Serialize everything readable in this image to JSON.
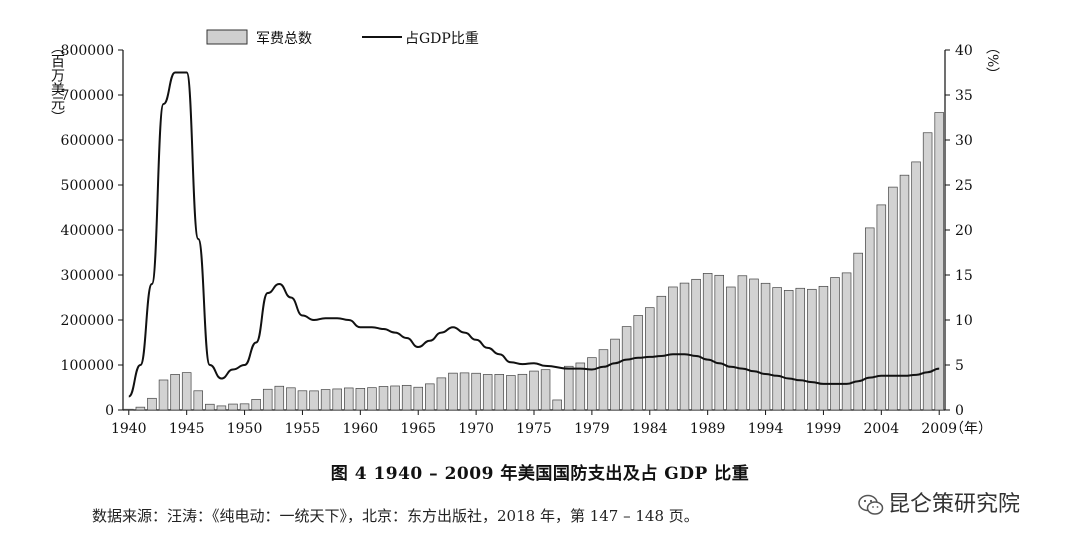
{
  "chart_data": {
    "type": "bar+line",
    "legend": {
      "position": "top-center",
      "bar_label": "军费总数",
      "line_label": "占GDP比重"
    },
    "y_left": {
      "unit": "（百万美元）",
      "ylim": [
        0,
        800000
      ],
      "ticks": [
        "0",
        "100000",
        "200000",
        "300000",
        "400000",
        "500000",
        "600000",
        "700000",
        "800000"
      ]
    },
    "y_right": {
      "unit": "（%）",
      "ylim": [
        0,
        40
      ],
      "ticks": [
        "0",
        "5",
        "10",
        "15",
        "20",
        "25",
        "30",
        "35",
        "40"
      ]
    },
    "x_ticks": [
      "1940",
      "1945",
      "1950",
      "1955",
      "1960",
      "1965",
      "1970",
      "1975",
      "1979",
      "1984",
      "1989",
      "1994",
      "1999",
      "2004",
      "2009"
    ],
    "x_unit": "（年）",
    "series": [
      {
        "name": "军费总数",
        "type": "bar",
        "x": [
          "1940",
          "1941",
          "1942",
          "1943",
          "1944",
          "1945",
          "1946",
          "1947",
          "1948",
          "1949",
          "1950",
          "1951",
          "1952",
          "1953",
          "1954",
          "1955",
          "1956",
          "1957",
          "1958",
          "1959",
          "1960",
          "1961",
          "1962",
          "1963",
          "1964",
          "1965",
          "1966",
          "1967",
          "1968",
          "1969",
          "1970",
          "1971",
          "1972",
          "1973",
          "1974",
          "1975",
          "1976",
          "1976TQ",
          "1977",
          "1978",
          "1979",
          "1980",
          "1981",
          "1982",
          "1983",
          "1984",
          "1985",
          "1986",
          "1987",
          "1988",
          "1989",
          "1990",
          "1991",
          "1992",
          "1993",
          "1994",
          "1995",
          "1996",
          "1997",
          "1998",
          "1999",
          "2000",
          "2001",
          "2002",
          "2003",
          "2004",
          "2005",
          "2006",
          "2007",
          "2008",
          "2009"
        ],
        "values": [
          1700,
          6300,
          26000,
          66700,
          79100,
          83000,
          42700,
          12800,
          9100,
          13200,
          13700,
          23600,
          46100,
          52800,
          49300,
          42700,
          42500,
          45400,
          46800,
          49000,
          48100,
          49600,
          52300,
          53400,
          54800,
          50600,
          58100,
          71400,
          81900,
          82500,
          81700,
          78900,
          79200,
          76700,
          79300,
          86500,
          89600,
          22300,
          97200,
          104500,
          116300,
          134000,
          157500,
          185300,
          209900,
          227400,
          252700,
          273400,
          282000,
          290400,
          303600,
          299300,
          273300,
          298300,
          291100,
          281600,
          272100,
          265800,
          270500,
          268200,
          274800,
          294400,
          304700,
          348500,
          404700,
          455800,
          495300,
          521800,
          551300,
          616100,
          661000
        ]
      },
      {
        "name": "占GDP比重",
        "type": "line",
        "x": [
          1940,
          1941,
          1942,
          1943,
          1944,
          1945,
          1946,
          1947,
          1948,
          1949,
          1950,
          1951,
          1952,
          1953,
          1954,
          1955,
          1956,
          1957,
          1958,
          1959,
          1960,
          1961,
          1962,
          1963,
          1964,
          1965,
          1966,
          1967,
          1968,
          1969,
          1970,
          1971,
          1972,
          1973,
          1974,
          1975,
          1976,
          1977,
          1978,
          1979,
          1980,
          1981,
          1982,
          1983,
          1984,
          1985,
          1986,
          1987,
          1988,
          1989,
          1990,
          1991,
          1992,
          1993,
          1994,
          1995,
          1996,
          1997,
          1998,
          1999,
          2000,
          2001,
          2002,
          2003,
          2004,
          2005,
          2006,
          2007,
          2008,
          2009
        ],
        "values": [
          1.5,
          5.0,
          14.0,
          34.0,
          37.5,
          37.5,
          19.0,
          5.0,
          3.5,
          4.5,
          5.0,
          7.5,
          13.0,
          14.0,
          12.5,
          10.5,
          10.0,
          10.2,
          10.2,
          10.0,
          9.2,
          9.2,
          9.0,
          8.6,
          8.0,
          7.0,
          7.7,
          8.6,
          9.2,
          8.6,
          7.8,
          6.9,
          6.2,
          5.3,
          5.1,
          5.2,
          4.9,
          4.6,
          4.6,
          4.5,
          4.8,
          5.2,
          5.6,
          5.8,
          5.9,
          6.0,
          6.2,
          6.2,
          6.0,
          5.6,
          5.2,
          4.8,
          4.6,
          4.3,
          4.0,
          3.8,
          3.5,
          3.3,
          3.1,
          2.9,
          2.9,
          2.9,
          3.2,
          3.6,
          3.8,
          3.8,
          3.8,
          3.9,
          4.2,
          4.6
        ]
      }
    ]
  },
  "caption": "图 4   1940 – 2009 年美国国防支出及占 GDP 比重",
  "source": "数据来源：汪涛：《纯电动：一统天下》，北京：东方出版社，2018 年，第 147 – 148 页。",
  "watermark": "昆仑策研究院"
}
